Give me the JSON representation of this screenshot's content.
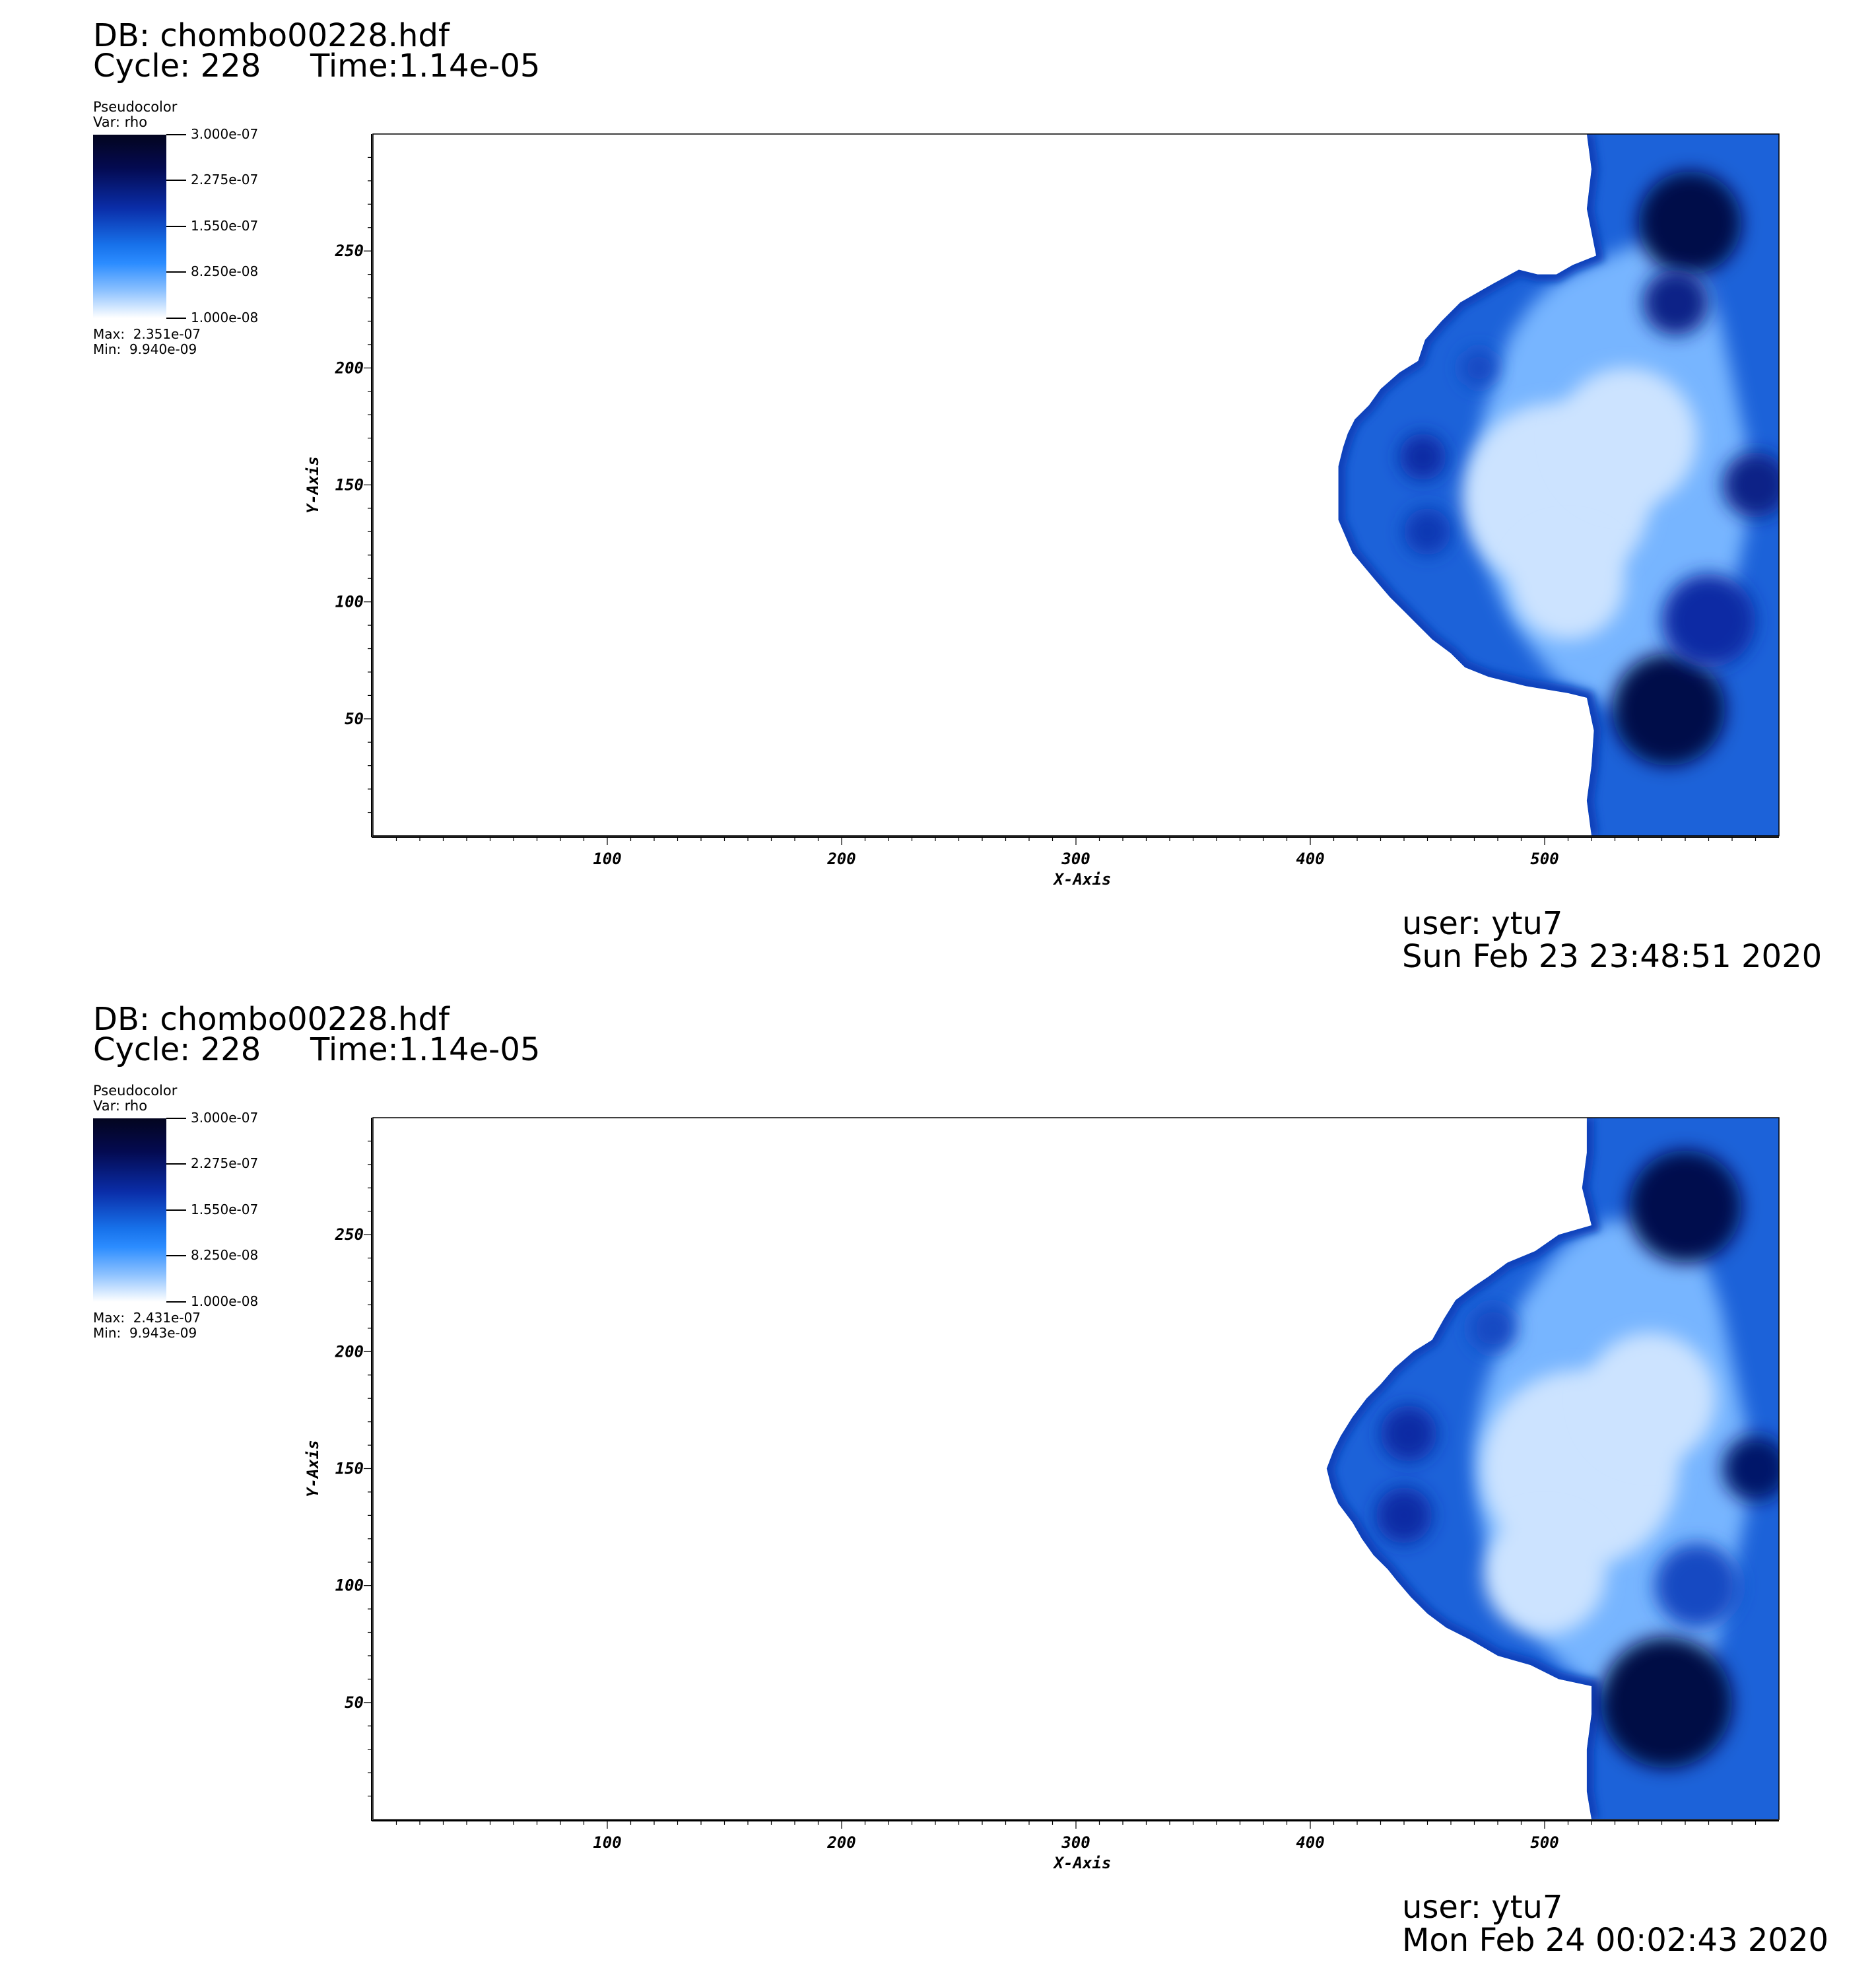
{
  "panels": [
    {
      "db": "DB: chombo00228.hdf",
      "cycle": "Cycle: 228",
      "time": "Time:1.14e-05",
      "legend_title": "Pseudocolor",
      "legend_var": "Var: rho",
      "colorbar_labels": [
        "3.000e-07",
        "2.275e-07",
        "1.550e-07",
        "8.250e-08",
        "1.000e-08"
      ],
      "max": "Max:  2.351e-07",
      "min": "Min:  9.940e-09",
      "user": "user: ytu7",
      "date": "Sun Feb 23 23:48:51 2020"
    },
    {
      "db": "DB: chombo00228.hdf",
      "cycle": "Cycle: 228",
      "time": "Time:1.14e-05",
      "legend_title": "Pseudocolor",
      "legend_var": "Var: rho",
      "colorbar_labels": [
        "3.000e-07",
        "2.275e-07",
        "1.550e-07",
        "8.250e-08",
        "1.000e-08"
      ],
      "max": "Max:  2.431e-07",
      "min": "Min:  9.943e-09",
      "user": "user: ytu7",
      "date": "Mon Feb 24 00:02:43 2020"
    }
  ],
  "chart_data": [
    {
      "type": "heatmap",
      "title": "",
      "variable": "rho",
      "xlabel": "X-Axis",
      "ylabel": "Y-Axis",
      "xlim": [
        0,
        600
      ],
      "ylim": [
        0,
        300
      ],
      "x_ticks": [
        "100",
        "200",
        "300",
        "400",
        "500"
      ],
      "y_ticks": [
        "50",
        "100",
        "150",
        "200",
        "250"
      ],
      "colorbar": {
        "min": 1e-08,
        "max": 3e-07,
        "colors": [
          "#ffffff",
          "#2b8cff",
          "#0a2da8",
          "#040a50",
          "#03051f"
        ]
      },
      "data_max": 2.351e-07,
      "data_min": 9.94e-09,
      "front": {
        "outline": [
          [
            518,
            300
          ],
          [
            520,
            285
          ],
          [
            518,
            268
          ],
          [
            522,
            248
          ],
          [
            512,
            244
          ],
          [
            505,
            240
          ],
          [
            497,
            240
          ],
          [
            489,
            242
          ],
          [
            478,
            236
          ],
          [
            464,
            228
          ],
          [
            456,
            220
          ],
          [
            449,
            212
          ],
          [
            446,
            203
          ],
          [
            438,
            198
          ],
          [
            430,
            191
          ],
          [
            425,
            184
          ],
          [
            419,
            178
          ],
          [
            416,
            172
          ],
          [
            414,
            166
          ],
          [
            412,
            158
          ],
          [
            412,
            150
          ],
          [
            412,
            143
          ],
          [
            412,
            135
          ],
          [
            415,
            128
          ],
          [
            418,
            121
          ],
          [
            423,
            115
          ],
          [
            428,
            109
          ],
          [
            434,
            102
          ],
          [
            440,
            96
          ],
          [
            446,
            90
          ],
          [
            452,
            84
          ],
          [
            460,
            78
          ],
          [
            466,
            72
          ],
          [
            476,
            68
          ],
          [
            492,
            64
          ],
          [
            510,
            61
          ],
          [
            518,
            59
          ],
          [
            521,
            45
          ],
          [
            520,
            30
          ],
          [
            518,
            15
          ],
          [
            520,
            0
          ],
          [
            600,
            0
          ],
          [
            600,
            300
          ]
        ],
        "inner_front": [
          [
            518,
            244
          ],
          [
            506,
            238
          ],
          [
            495,
            228
          ],
          [
            486,
            215
          ],
          [
            479,
            198
          ],
          [
            474,
            180
          ],
          [
            471,
            162
          ],
          [
            470,
            150
          ],
          [
            471,
            138
          ],
          [
            474,
            122
          ],
          [
            479,
            106
          ],
          [
            486,
            92
          ],
          [
            496,
            78
          ],
          [
            506,
            66
          ],
          [
            518,
            60
          ]
        ],
        "dark_clumps": [
          {
            "x": 562,
            "y": 262,
            "r": 22,
            "level": 0.92
          },
          {
            "x": 556,
            "y": 228,
            "r": 14,
            "level": 0.7
          },
          {
            "x": 553,
            "y": 54,
            "r": 24,
            "level": 0.92
          },
          {
            "x": 570,
            "y": 92,
            "r": 20,
            "level": 0.6
          },
          {
            "x": 590,
            "y": 150,
            "r": 14,
            "level": 0.7
          },
          {
            "x": 448,
            "y": 162,
            "r": 10,
            "level": 0.6
          },
          {
            "x": 450,
            "y": 130,
            "r": 10,
            "level": 0.55
          },
          {
            "x": 472,
            "y": 200,
            "r": 8,
            "level": 0.5
          }
        ],
        "light_zones": [
          {
            "x": 505,
            "y": 145,
            "r": 40
          },
          {
            "x": 535,
            "y": 170,
            "r": 30
          },
          {
            "x": 510,
            "y": 108,
            "r": 24
          }
        ]
      }
    },
    {
      "type": "heatmap",
      "title": "",
      "variable": "rho",
      "xlabel": "X-Axis",
      "ylabel": "Y-Axis",
      "xlim": [
        0,
        600
      ],
      "ylim": [
        0,
        300
      ],
      "x_ticks": [
        "100",
        "200",
        "300",
        "400",
        "500"
      ],
      "y_ticks": [
        "50",
        "100",
        "150",
        "200",
        "250"
      ],
      "colorbar": {
        "min": 1e-08,
        "max": 3e-07,
        "colors": [
          "#ffffff",
          "#2b8cff",
          "#0a2da8",
          "#040a50",
          "#03051f"
        ]
      },
      "data_max": 2.431e-07,
      "data_min": 9.943e-09,
      "front": {
        "outline": [
          [
            518,
            300
          ],
          [
            518,
            285
          ],
          [
            516,
            270
          ],
          [
            520,
            254
          ],
          [
            506,
            250
          ],
          [
            496,
            243
          ],
          [
            484,
            238
          ],
          [
            476,
            232
          ],
          [
            470,
            228
          ],
          [
            462,
            222
          ],
          [
            457,
            214
          ],
          [
            452,
            205
          ],
          [
            444,
            200
          ],
          [
            436,
            193
          ],
          [
            430,
            186
          ],
          [
            424,
            180
          ],
          [
            418,
            172
          ],
          [
            413,
            164
          ],
          [
            410,
            158
          ],
          [
            407,
            150
          ],
          [
            409,
            142
          ],
          [
            412,
            135
          ],
          [
            418,
            127
          ],
          [
            422,
            120
          ],
          [
            427,
            113
          ],
          [
            433,
            107
          ],
          [
            437,
            102
          ],
          [
            443,
            95
          ],
          [
            450,
            88
          ],
          [
            458,
            82
          ],
          [
            468,
            77
          ],
          [
            480,
            70
          ],
          [
            494,
            66
          ],
          [
            506,
            60
          ],
          [
            520,
            57
          ],
          [
            520,
            45
          ],
          [
            518,
            30
          ],
          [
            518,
            12
          ],
          [
            520,
            0
          ],
          [
            600,
            0
          ],
          [
            600,
            300
          ]
        ],
        "inner_front": [
          [
            520,
            254
          ],
          [
            507,
            244
          ],
          [
            496,
            230
          ],
          [
            486,
            215
          ],
          [
            479,
            198
          ],
          [
            473,
            180
          ],
          [
            470,
            162
          ],
          [
            470,
            150
          ],
          [
            471,
            138
          ],
          [
            474,
            122
          ],
          [
            480,
            105
          ],
          [
            488,
            90
          ],
          [
            498,
            76
          ],
          [
            510,
            64
          ],
          [
            520,
            57
          ]
        ],
        "dark_clumps": [
          {
            "x": 560,
            "y": 262,
            "r": 24,
            "level": 0.9
          },
          {
            "x": 552,
            "y": 50,
            "r": 28,
            "level": 0.95
          },
          {
            "x": 590,
            "y": 150,
            "r": 14,
            "level": 0.8
          },
          {
            "x": 442,
            "y": 165,
            "r": 12,
            "level": 0.6
          },
          {
            "x": 440,
            "y": 130,
            "r": 12,
            "level": 0.6
          },
          {
            "x": 478,
            "y": 210,
            "r": 10,
            "level": 0.5
          },
          {
            "x": 565,
            "y": 100,
            "r": 18,
            "level": 0.5
          }
        ],
        "light_zones": [
          {
            "x": 515,
            "y": 150,
            "r": 42
          },
          {
            "x": 545,
            "y": 180,
            "r": 28
          },
          {
            "x": 500,
            "y": 105,
            "r": 26
          }
        ]
      }
    }
  ]
}
